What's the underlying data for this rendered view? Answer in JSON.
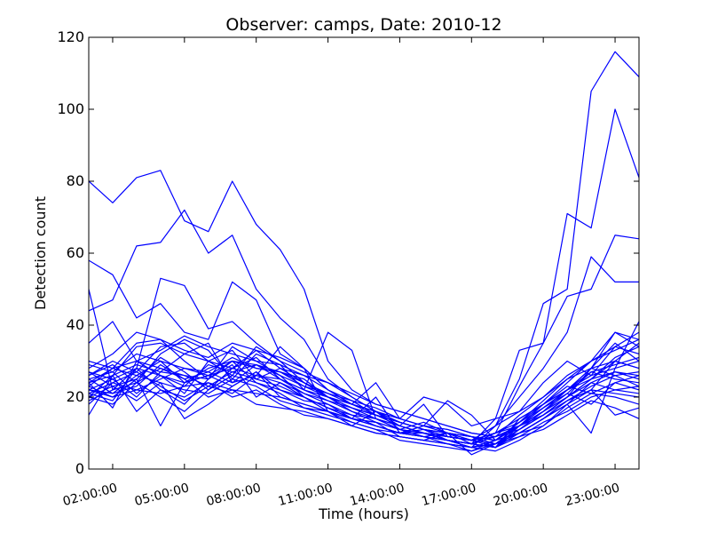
{
  "chart_data": {
    "type": "line",
    "title": "Observer: camps, Date: 2010-12",
    "xlabel": "Time (hours)",
    "ylabel": "Detection count",
    "xlim": [
      1,
      24
    ],
    "ylim": [
      0,
      120
    ],
    "x_tick_values": [
      2,
      5,
      8,
      11,
      14,
      17,
      20,
      23
    ],
    "x_tick_labels": [
      "02:00:00",
      "05:00:00",
      "08:00:00",
      "11:00:00",
      "14:00:00",
      "17:00:00",
      "20:00:00",
      "23:00:00"
    ],
    "y_ticks": [
      0,
      20,
      40,
      60,
      80,
      100,
      120
    ],
    "grid": false,
    "line_color": "#0000ff",
    "x": [
      1,
      2,
      3,
      4,
      5,
      6,
      7,
      8,
      9,
      10,
      11,
      12,
      13,
      14,
      15,
      16,
      17,
      18,
      19,
      20,
      21,
      22,
      23,
      24
    ],
    "series": [
      {
        "values": [
          80,
          74,
          81,
          83,
          69,
          66,
          80,
          68,
          61,
          50,
          30,
          22,
          18,
          16,
          14,
          12,
          10,
          9,
          12,
          15,
          20,
          28,
          35,
          30
        ]
      },
      {
        "values": [
          44,
          47,
          62,
          63,
          72,
          60,
          65,
          50,
          42,
          36,
          25,
          20,
          16,
          12,
          10,
          9,
          8,
          10,
          14,
          18,
          24,
          30,
          38,
          34
        ]
      },
      {
        "values": [
          58,
          54,
          42,
          46,
          38,
          36,
          52,
          47,
          32,
          28,
          22,
          18,
          15,
          13,
          11,
          9,
          8,
          10,
          12,
          16,
          22,
          28,
          30,
          28
        ]
      },
      {
        "values": [
          50,
          22,
          28,
          53,
          51,
          39,
          41,
          35,
          30,
          27,
          24,
          20,
          16,
          14,
          12,
          10,
          8,
          9,
          11,
          15,
          20,
          25,
          27,
          26
        ]
      },
      {
        "values": [
          35,
          41,
          30,
          33,
          37,
          34,
          32,
          30,
          29,
          22,
          38,
          33,
          14,
          12,
          18,
          9,
          8,
          12,
          16,
          20,
          25,
          30,
          34,
          32
        ]
      },
      {
        "values": [
          22,
          20,
          25,
          12,
          24,
          26,
          30,
          28,
          27,
          25,
          20,
          16,
          13,
          11,
          9,
          8,
          7,
          14,
          33,
          35,
          71,
          67,
          100,
          81
        ]
      },
      {
        "values": [
          20,
          18,
          24,
          28,
          26,
          23,
          27,
          29,
          25,
          21,
          18,
          15,
          12,
          10,
          9,
          8,
          6,
          12,
          25,
          46,
          50,
          105,
          116,
          109
        ]
      },
      {
        "values": [
          26,
          30,
          27,
          34,
          35,
          30,
          28,
          33,
          31,
          28,
          22,
          19,
          15,
          12,
          10,
          8,
          7,
          10,
          23,
          35,
          48,
          50,
          65,
          64
        ]
      },
      {
        "values": [
          24,
          26,
          34,
          35,
          32,
          30,
          26,
          34,
          30,
          24,
          20,
          17,
          14,
          11,
          10,
          9,
          8,
          12,
          20,
          28,
          38,
          59,
          52,
          52
        ]
      },
      {
        "values": [
          28,
          32,
          38,
          36,
          33,
          31,
          35,
          33,
          28,
          26,
          22,
          18,
          24,
          14,
          20,
          18,
          12,
          14,
          16,
          24,
          30,
          26,
          28,
          41
        ]
      },
      {
        "values": [
          30,
          28,
          35,
          36,
          30,
          25,
          34,
          30,
          26,
          20,
          17,
          14,
          20,
          10,
          12,
          19,
          15,
          8,
          10,
          12,
          18,
          22,
          30,
          35
        ]
      },
      {
        "values": [
          22,
          25,
          20,
          27,
          32,
          35,
          24,
          26,
          34,
          28,
          16,
          12,
          16,
          11,
          13,
          10,
          9,
          6,
          14,
          18,
          22,
          28,
          38,
          36
        ]
      },
      {
        "values": [
          25,
          21,
          26,
          30,
          24,
          28,
          30,
          24,
          22,
          19,
          18,
          14,
          13,
          9,
          8,
          7,
          5,
          8,
          10,
          14,
          18,
          24,
          27,
          25
        ]
      },
      {
        "values": [
          18,
          24,
          22,
          25,
          28,
          26,
          23,
          27,
          20,
          18,
          16,
          13,
          11,
          10,
          10,
          8,
          7,
          9,
          12,
          16,
          20,
          25,
          30,
          28
        ]
      },
      {
        "values": [
          23,
          28,
          30,
          26,
          21,
          30,
          33,
          25,
          28,
          24,
          20,
          17,
          15,
          13,
          11,
          9,
          8,
          10,
          13,
          17,
          22,
          27,
          25,
          24
        ]
      },
      {
        "values": [
          21,
          19,
          28,
          22,
          20,
          24,
          20,
          22,
          18,
          15,
          14,
          12,
          10,
          9,
          8,
          10,
          4,
          7,
          9,
          13,
          16,
          20,
          22,
          21
        ]
      },
      {
        "values": [
          27,
          23,
          25,
          31,
          27,
          22,
          28,
          31,
          25,
          22,
          19,
          16,
          14,
          11,
          9,
          10,
          7,
          6,
          11,
          15,
          19,
          23,
          26,
          23
        ]
      },
      {
        "values": [
          15,
          26,
          16,
          22,
          18,
          25,
          29,
          20,
          24,
          20,
          16,
          14,
          12,
          10,
          11,
          8,
          6,
          5,
          8,
          12,
          17,
          21,
          20,
          18
        ]
      },
      {
        "values": [
          19,
          22,
          24,
          20,
          16,
          22,
          26,
          24,
          21,
          17,
          15,
          13,
          11,
          8,
          7,
          6,
          5,
          7,
          10,
          14,
          19,
          22,
          21,
          20
        ]
      },
      {
        "values": [
          24,
          17,
          30,
          28,
          25,
          20,
          22,
          18,
          17,
          16,
          14,
          12,
          10,
          9,
          8,
          7,
          6,
          8,
          12,
          18,
          23,
          21,
          24,
          22
        ]
      },
      {
        "values": [
          26,
          29,
          24,
          32,
          36,
          33,
          25,
          32,
          29,
          26,
          24,
          21,
          18,
          16,
          14,
          12,
          10,
          9,
          15,
          20,
          26,
          30,
          33,
          36
        ]
      },
      {
        "values": [
          29,
          27,
          32,
          30,
          28,
          27,
          31,
          28,
          27,
          23,
          21,
          18,
          16,
          14,
          12,
          11,
          9,
          8,
          13,
          18,
          22,
          25,
          31,
          34
        ]
      },
      {
        "values": [
          20,
          23,
          19,
          24,
          22,
          21,
          25,
          23,
          19,
          17,
          16,
          14,
          12,
          10,
          9,
          8,
          7,
          6,
          9,
          11,
          15,
          19,
          17,
          14
        ]
      },
      {
        "values": [
          21,
          24,
          27,
          23,
          19,
          23,
          21,
          26,
          24,
          21,
          19,
          17,
          15,
          13,
          11,
          10,
          8,
          6,
          12,
          17,
          21,
          18,
          24,
          26
        ]
      },
      {
        "values": [
          25,
          27,
          21,
          26,
          23,
          29,
          27,
          25,
          23,
          20,
          17,
          15,
          14,
          12,
          10,
          9,
          8,
          7,
          12,
          15,
          20,
          24,
          22,
          23
        ]
      },
      {
        "values": [
          22,
          21,
          23,
          29,
          25,
          27,
          24,
          29,
          26,
          23,
          20,
          18,
          16,
          13,
          11,
          10,
          9,
          8,
          13,
          19,
          25,
          28,
          26,
          27
        ]
      },
      {
        "values": [
          24,
          28,
          26,
          24,
          14,
          18,
          23,
          27,
          22,
          20,
          17,
          14,
          12,
          10,
          9,
          7,
          6,
          7,
          10,
          14,
          18,
          10,
          28,
          30
        ]
      },
      {
        "values": [
          20,
          26,
          29,
          27,
          26,
          25,
          30,
          29,
          27,
          24,
          21,
          19,
          17,
          14,
          12,
          11,
          9,
          7,
          11,
          16,
          21,
          27,
          29,
          31
        ]
      },
      {
        "values": [
          23,
          20,
          22,
          21,
          23,
          24,
          22,
          21,
          20,
          18,
          16,
          14,
          13,
          11,
          10,
          8,
          7,
          6,
          10,
          14,
          19,
          22,
          15,
          17
        ]
      },
      {
        "values": [
          27,
          25,
          28,
          26,
          24,
          26,
          28,
          26,
          25,
          22,
          20,
          18,
          16,
          13,
          11,
          10,
          9,
          8,
          12,
          17,
          22,
          26,
          34,
          38
        ]
      }
    ]
  }
}
